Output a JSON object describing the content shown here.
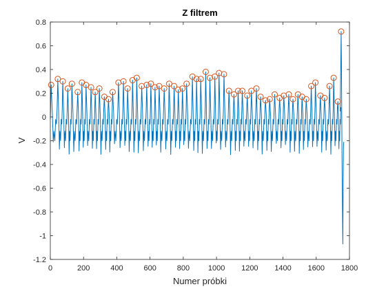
{
  "chart_data": {
    "type": "line",
    "title": "Z filtrem",
    "xlabel": "Numer próbki",
    "ylabel": "V",
    "xlim": [
      0,
      1800
    ],
    "ylim": [
      -1.2,
      0.8
    ],
    "xticks": [
      0,
      200,
      400,
      600,
      800,
      1000,
      1200,
      1400,
      1600,
      1800
    ],
    "xtick_labels": [
      "0",
      "200",
      "400",
      "600",
      "800",
      "1000",
      "1200",
      "1400",
      "1600",
      "1800"
    ],
    "yticks": [
      0.8,
      0.6,
      0.4,
      0.2,
      0,
      -0.2,
      -0.4,
      -0.6,
      -0.8,
      -1,
      -1.2
    ],
    "ytick_labels": [
      "0.8",
      "0.6",
      "0.4",
      "0.2",
      "0",
      "-0.2",
      "-0.4",
      "-0.6",
      "-0.8",
      "-1",
      "-1.2"
    ],
    "grid": false,
    "colors": {
      "signal": "#0072bd",
      "peaks": "#d95319",
      "axes": "#262626"
    },
    "series": [
      {
        "role": "signal",
        "style": "line"
      },
      {
        "role": "peaks",
        "style": "circle-markers",
        "points": [
          [
            5,
            0.27
          ],
          [
            45,
            0.32
          ],
          [
            75,
            0.3
          ],
          [
            105,
            0.24
          ],
          [
            130,
            0.28
          ],
          [
            165,
            0.21
          ],
          [
            190,
            0.29
          ],
          [
            215,
            0.27
          ],
          [
            245,
            0.25
          ],
          [
            270,
            0.21
          ],
          [
            295,
            0.24
          ],
          [
            325,
            0.17
          ],
          [
            350,
            0.15
          ],
          [
            375,
            0.21
          ],
          [
            410,
            0.29
          ],
          [
            440,
            0.3
          ],
          [
            465,
            0.24
          ],
          [
            495,
            0.31
          ],
          [
            520,
            0.33
          ],
          [
            550,
            0.26
          ],
          [
            580,
            0.27
          ],
          [
            605,
            0.28
          ],
          [
            630,
            0.25
          ],
          [
            655,
            0.26
          ],
          [
            685,
            0.24
          ],
          [
            715,
            0.28
          ],
          [
            745,
            0.26
          ],
          [
            770,
            0.23
          ],
          [
            795,
            0.24
          ],
          [
            820,
            0.28
          ],
          [
            855,
            0.34
          ],
          [
            880,
            0.32
          ],
          [
            905,
            0.32
          ],
          [
            935,
            0.38
          ],
          [
            960,
            0.33
          ],
          [
            990,
            0.34
          ],
          [
            1015,
            0.37
          ],
          [
            1045,
            0.36
          ],
          [
            1075,
            0.22
          ],
          [
            1105,
            0.19
          ],
          [
            1130,
            0.22
          ],
          [
            1155,
            0.22
          ],
          [
            1185,
            0.18
          ],
          [
            1210,
            0.22
          ],
          [
            1240,
            0.24
          ],
          [
            1265,
            0.17
          ],
          [
            1295,
            0.14
          ],
          [
            1320,
            0.15
          ],
          [
            1350,
            0.19
          ],
          [
            1380,
            0.16
          ],
          [
            1405,
            0.18
          ],
          [
            1435,
            0.19
          ],
          [
            1460,
            0.15
          ],
          [
            1490,
            0.19
          ],
          [
            1515,
            0.17
          ],
          [
            1540,
            0.15
          ],
          [
            1570,
            0.26
          ],
          [
            1595,
            0.29
          ],
          [
            1625,
            0.18
          ],
          [
            1650,
            0.16
          ],
          [
            1680,
            0.26
          ],
          [
            1705,
            0.33
          ],
          [
            1730,
            0.13
          ],
          [
            1750,
            0.72
          ]
        ]
      }
    ]
  }
}
